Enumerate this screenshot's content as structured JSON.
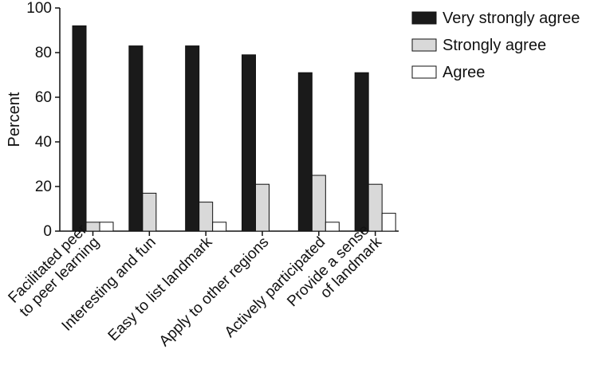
{
  "chart_data": {
    "type": "bar",
    "title": "",
    "xlabel": "",
    "ylabel": "Percent",
    "ylim": [
      0,
      100
    ],
    "yticks": [
      0,
      20,
      40,
      60,
      80,
      100
    ],
    "grid": false,
    "legend_position": "top-right",
    "categories": [
      [
        "Facilitated peer",
        "to peer learning"
      ],
      [
        "Interesting and fun"
      ],
      [
        "Easy to list landmark"
      ],
      [
        "Apply to other regions"
      ],
      [
        "Actively participated"
      ],
      [
        "Provide a sense",
        "of landmark"
      ]
    ],
    "series": [
      {
        "name": "Very strongly agree",
        "color": "#1a1a1a",
        "values": [
          92,
          83,
          83,
          79,
          71,
          71
        ]
      },
      {
        "name": "Strongly agree",
        "color": "#d9d9d9",
        "values": [
          4,
          17,
          13,
          21,
          25,
          21
        ]
      },
      {
        "name": "Agree",
        "color": "#ffffff",
        "values": [
          4,
          0,
          4,
          0,
          4,
          8
        ]
      }
    ]
  }
}
